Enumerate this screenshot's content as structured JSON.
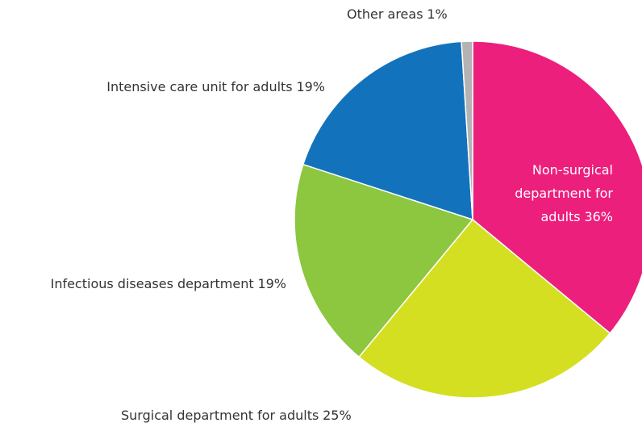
{
  "chart_data": {
    "type": "pie",
    "categories": [
      "Non-surgical department for adults",
      "Surgical department for adults",
      "Infectious diseases department",
      "Intensive care unit for adults",
      "Other areas"
    ],
    "values": [
      36,
      25,
      19,
      19,
      1
    ],
    "value_labels": [
      "36%",
      "25%",
      "19%",
      "19%",
      "1%"
    ],
    "colors": [
      "#ec1f7d",
      "#d4df22",
      "#8dc63f",
      "#1273bc",
      "#b3b3b3"
    ]
  }
}
